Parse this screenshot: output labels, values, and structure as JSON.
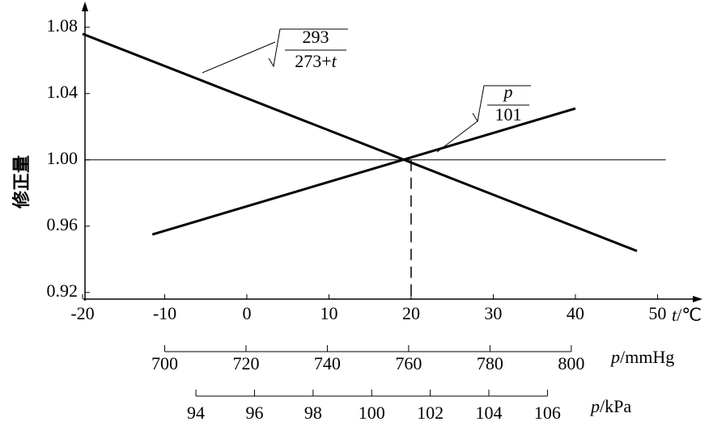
{
  "chart_data": {
    "type": "line",
    "ylabel": "修正量",
    "xlabel": {
      "var": "t",
      "unit": "/℃"
    },
    "xlim": [
      -20,
      54
    ],
    "xticks": [
      -20,
      -10,
      0,
      10,
      20,
      30,
      40,
      50
    ],
    "ylim": [
      0.916,
      1.094
    ],
    "yticks": [
      0.92,
      0.96,
      {
        "value": 1,
        "label": "1.00"
      },
      1.04,
      1.08
    ],
    "series": [
      {
        "color": "#000000",
        "x": [
          -20,
          47.5
        ],
        "values": [
          1.076,
          0.945
        ]
      },
      {
        "color": "#000000",
        "x": [
          -11.5,
          40
        ],
        "values": [
          0.955,
          1.031
        ]
      }
    ],
    "annotations": [
      {
        "numerator": "293",
        "denominator": "273+",
        "var": "t"
      },
      {
        "numerator": "p",
        "denominator": "101"
      }
    ],
    "reference_lines": {
      "x": 20,
      "y": 1
    },
    "secondary_axes": [
      {
        "var": "p",
        "unit": "/mmHg",
        "lim": [
          700,
          800
        ],
        "t_range": [
          -10,
          39.5
        ],
        "ticks": [
          700,
          720,
          740,
          760,
          780,
          800
        ]
      },
      {
        "var": "p",
        "unit": "/kPa",
        "lim": [
          94,
          106
        ],
        "t_range": [
          -6.2,
          36.6
        ],
        "ticks": [
          94,
          96,
          98,
          100,
          102,
          104,
          106
        ]
      }
    ]
  }
}
